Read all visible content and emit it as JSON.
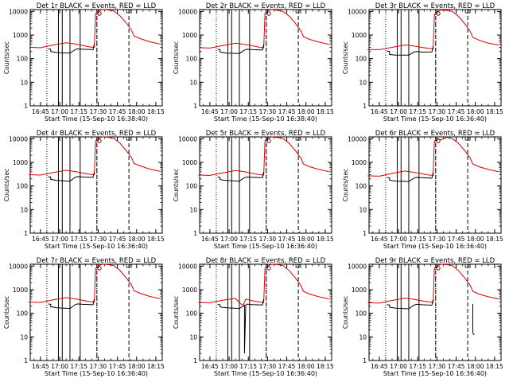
{
  "chart_data": [
    {
      "type": "line",
      "title": "Det 1r BLACK = Events, RED = LLD",
      "xlabel": "Start Time (15-Sep-10 16:38:40)",
      "ylabel": "Counts/sec",
      "x_ticks": [
        "16:45",
        "17:00",
        "17:15",
        "17:30",
        "17:45",
        "18:00",
        "18:15"
      ],
      "y_ticks": [
        "1",
        "10",
        "100",
        "1000",
        "10000"
      ],
      "ylim": [
        1,
        12000
      ],
      "log_y": true,
      "series": [
        {
          "color": "#dd0000",
          "x": [
            "16:38",
            "16:45",
            "16:55",
            "17:05",
            "17:12",
            "17:18",
            "17:24",
            "17:27",
            "17:28",
            "17:30",
            "17:33",
            "17:38",
            "17:42",
            "17:47",
            "17:52",
            "17:56",
            "17:58",
            "18:03",
            "18:10",
            "18:18"
          ],
          "y": [
            300,
            290,
            380,
            470,
            420,
            360,
            310,
            300,
            8000,
            10000,
            12000,
            11500,
            10500,
            6500,
            3200,
            1600,
            900,
            700,
            520,
            420
          ]
        },
        {
          "color": "#000000",
          "x": [
            "16:51",
            "16:53",
            "16:53",
            "16:58",
            "17:08",
            "17:12",
            "17:14",
            "17:18",
            "17:26",
            "17:27"
          ],
          "y": [
            260,
            250,
            200,
            180,
            170,
            240,
            260,
            250,
            240,
            420
          ]
        }
      ],
      "solid_markers": [
        "16:59",
        "17:02",
        "17:08",
        "17:16"
      ],
      "dotted_markers": [
        "16:50",
        "17:29"
      ],
      "dashed_markers": [
        "17:29",
        "17:54"
      ]
    },
    {
      "type": "line",
      "title": "Det 2r BLACK = Events, RED = LLD",
      "xlabel": "Start Time (15-Sep-10 16:38:40)",
      "ylabel": "Counts/sec",
      "x_ticks": [
        "16:45",
        "17:00",
        "17:15",
        "17:30",
        "17:45",
        "18:00",
        "18:15"
      ],
      "y_ticks": [
        "1",
        "10",
        "100",
        "1000",
        "10000"
      ],
      "ylim": [
        1,
        12000
      ],
      "log_y": true,
      "series": [
        {
          "color": "#dd0000",
          "x": [
            "16:38",
            "16:45",
            "16:55",
            "17:05",
            "17:12",
            "17:18",
            "17:24",
            "17:27",
            "17:28",
            "17:30",
            "17:33",
            "17:38",
            "17:42",
            "17:47",
            "17:52",
            "17:56",
            "17:58",
            "18:03",
            "18:10",
            "18:18"
          ],
          "y": [
            290,
            280,
            360,
            450,
            400,
            350,
            300,
            290,
            8500,
            10500,
            12000,
            11000,
            10000,
            6200,
            3000,
            1500,
            850,
            650,
            500,
            400
          ]
        },
        {
          "color": "#000000",
          "x": [
            "16:51",
            "16:53",
            "16:53",
            "16:58",
            "17:08",
            "17:12",
            "17:14",
            "17:18",
            "17:26",
            "17:27"
          ],
          "y": [
            250,
            240,
            190,
            170,
            165,
            230,
            250,
            240,
            230,
            400
          ]
        }
      ],
      "solid_markers": [
        "16:59",
        "17:02",
        "17:08",
        "17:16"
      ],
      "dotted_markers": [
        "16:50",
        "17:29"
      ],
      "dashed_markers": [
        "17:29",
        "17:54"
      ]
    },
    {
      "type": "line",
      "title": "Det 3r BLACK = Events, RED = LLD",
      "xlabel": "Start Time (15-Sep-10 16:36:40)",
      "ylabel": "Counts/sec",
      "x_ticks": [
        "16:45",
        "17:00",
        "17:15",
        "17:30",
        "17:45",
        "18:00",
        "18:15"
      ],
      "y_ticks": [
        "1",
        "10",
        "100",
        "1000",
        "10000"
      ],
      "ylim": [
        1,
        12000
      ],
      "log_y": true,
      "series": [
        {
          "color": "#dd0000",
          "x": [
            "16:36",
            "16:45",
            "16:55",
            "17:05",
            "17:12",
            "17:18",
            "17:24",
            "17:27",
            "17:28",
            "17:30",
            "17:33",
            "17:38",
            "17:42",
            "17:47",
            "17:52",
            "17:56",
            "17:58",
            "18:03",
            "18:10",
            "18:18"
          ],
          "y": [
            240,
            240,
            300,
            380,
            340,
            300,
            270,
            260,
            7500,
            9500,
            11500,
            11000,
            10000,
            6000,
            2800,
            1400,
            800,
            600,
            450,
            380
          ]
        },
        {
          "color": "#000000",
          "x": [
            "16:51",
            "16:53",
            "16:53",
            "16:58",
            "17:08",
            "17:12",
            "17:14",
            "17:18",
            "17:26",
            "17:27"
          ],
          "y": [
            210,
            200,
            150,
            140,
            140,
            190,
            200,
            190,
            190,
            330
          ]
        }
      ],
      "solid_markers": [
        "16:59",
        "17:02",
        "17:08",
        "17:16"
      ],
      "dotted_markers": [
        "16:50",
        "17:29"
      ],
      "dashed_markers": [
        "17:29",
        "17:54"
      ]
    },
    {
      "type": "line",
      "title": "Det 4r BLACK = Events, RED = LLD",
      "xlabel": "Start Time (15-Sep-10 16:36:40)",
      "ylabel": "Counts/sec",
      "x_ticks": [
        "16:45",
        "17:00",
        "17:15",
        "17:30",
        "17:45",
        "18:00",
        "18:15"
      ],
      "y_ticks": [
        "1",
        "10",
        "100",
        "1000",
        "10000"
      ],
      "ylim": [
        1,
        12000
      ],
      "log_y": true,
      "series": [
        {
          "color": "#dd0000",
          "x": [
            "16:36",
            "16:45",
            "16:55",
            "17:05",
            "17:12",
            "17:18",
            "17:24",
            "17:27",
            "17:28",
            "17:30",
            "17:33",
            "17:38",
            "17:42",
            "17:47",
            "17:52",
            "17:56",
            "17:58",
            "18:03",
            "18:10",
            "18:18"
          ],
          "y": [
            300,
            290,
            370,
            460,
            410,
            350,
            310,
            300,
            8000,
            10000,
            12000,
            11500,
            10500,
            6500,
            3100,
            1600,
            900,
            700,
            520,
            420
          ]
        },
        {
          "color": "#000000",
          "x": [
            "16:51",
            "16:53",
            "16:53",
            "16:58",
            "17:08",
            "17:12",
            "17:14",
            "17:18",
            "17:26",
            "17:27"
          ],
          "y": [
            250,
            240,
            190,
            170,
            160,
            230,
            250,
            240,
            230,
            400
          ]
        }
      ],
      "solid_markers": [
        "16:59",
        "17:02",
        "17:08",
        "17:16"
      ],
      "dotted_markers": [
        "16:50",
        "17:29"
      ],
      "dashed_markers": [
        "17:29",
        "17:54"
      ]
    },
    {
      "type": "line",
      "title": "Det 5r BLACK = Events, RED = LLD",
      "xlabel": "Start Time (15-Sep-10 16:36:40)",
      "ylabel": "Counts/sec",
      "x_ticks": [
        "16:45",
        "17:00",
        "17:15",
        "17:30",
        "17:45",
        "18:00",
        "18:15"
      ],
      "y_ticks": [
        "1",
        "10",
        "100",
        "1000",
        "10000"
      ],
      "ylim": [
        1,
        12000
      ],
      "log_y": true,
      "series": [
        {
          "color": "#dd0000",
          "x": [
            "16:36",
            "16:45",
            "16:55",
            "17:05",
            "17:12",
            "17:18",
            "17:24",
            "17:27",
            "17:28",
            "17:30",
            "17:33",
            "17:38",
            "17:42",
            "17:47",
            "17:52",
            "17:56",
            "17:58",
            "18:03",
            "18:10",
            "18:18"
          ],
          "y": [
            290,
            280,
            360,
            450,
            400,
            340,
            300,
            290,
            8200,
            10200,
            12000,
            11200,
            10200,
            6300,
            3000,
            1500,
            850,
            650,
            500,
            400
          ]
        },
        {
          "color": "#000000",
          "x": [
            "16:51",
            "16:53",
            "16:53",
            "16:58",
            "17:08",
            "17:12",
            "17:14",
            "17:18",
            "17:26",
            "17:27"
          ],
          "y": [
            240,
            230,
            185,
            170,
            160,
            225,
            240,
            235,
            225,
            390
          ]
        }
      ],
      "solid_markers": [
        "16:59",
        "17:02",
        "17:08",
        "17:16"
      ],
      "dotted_markers": [
        "16:50",
        "17:29"
      ],
      "dashed_markers": [
        "17:29",
        "17:54"
      ]
    },
    {
      "type": "line",
      "title": "Det 6r BLACK = Events, RED = LLD",
      "xlabel": "Start Time (15-Sep-10 16:36:40)",
      "ylabel": "Counts/sec",
      "x_ticks": [
        "16:45",
        "17:00",
        "17:15",
        "17:30",
        "17:45",
        "18:00",
        "18:15"
      ],
      "y_ticks": [
        "1",
        "10",
        "100",
        "1000",
        "10000"
      ],
      "ylim": [
        1,
        12000
      ],
      "log_y": true,
      "series": [
        {
          "color": "#dd0000",
          "x": [
            "16:36",
            "16:45",
            "16:55",
            "17:05",
            "17:12",
            "17:18",
            "17:24",
            "17:27",
            "17:28",
            "17:30",
            "17:33",
            "17:38",
            "17:42",
            "17:47",
            "17:52",
            "17:56",
            "17:58",
            "18:03",
            "18:10",
            "18:18"
          ],
          "y": [
            270,
            260,
            340,
            430,
            380,
            330,
            290,
            280,
            8000,
            10000,
            9000,
            11500,
            10000,
            6200,
            3000,
            1500,
            850,
            650,
            500,
            400
          ]
        },
        {
          "color": "#000000",
          "x": [
            "16:51",
            "16:53",
            "16:53",
            "16:58",
            "17:08",
            "17:12",
            "17:14",
            "17:18",
            "17:26",
            "17:27"
          ],
          "y": [
            230,
            220,
            175,
            160,
            155,
            215,
            230,
            225,
            215,
            370
          ]
        }
      ],
      "solid_markers": [
        "16:59",
        "17:02",
        "17:08",
        "17:16"
      ],
      "dotted_markers": [
        "16:50",
        "17:29"
      ],
      "dashed_markers": [
        "17:29",
        "17:54"
      ]
    },
    {
      "type": "line",
      "title": "Det 7r BLACK = Events, RED = LLD",
      "xlabel": "Start Time (15-Sep-10 16:36:40)",
      "ylabel": "Counts/sec",
      "x_ticks": [
        "16:45",
        "17:00",
        "17:15",
        "17:30",
        "17:45",
        "18:00",
        "18:15"
      ],
      "y_ticks": [
        "1",
        "10",
        "100",
        "1000",
        "10000"
      ],
      "ylim": [
        1,
        12000
      ],
      "log_y": true,
      "series": [
        {
          "color": "#dd0000",
          "x": [
            "16:36",
            "16:45",
            "16:55",
            "17:05",
            "17:12",
            "17:18",
            "17:24",
            "17:27",
            "17:28",
            "17:30",
            "17:33",
            "17:38",
            "17:42",
            "17:47",
            "17:52",
            "17:56",
            "17:58",
            "18:03",
            "18:10",
            "18:18"
          ],
          "y": [
            300,
            290,
            370,
            460,
            410,
            350,
            310,
            300,
            8000,
            10000,
            12000,
            11500,
            10500,
            6500,
            3100,
            1600,
            900,
            700,
            520,
            420
          ]
        },
        {
          "color": "#000000",
          "x": [
            "16:51",
            "16:53",
            "16:53",
            "16:58",
            "17:08",
            "17:12",
            "17:14",
            "17:18",
            "17:26",
            "17:27"
          ],
          "y": [
            250,
            240,
            190,
            170,
            160,
            230,
            250,
            240,
            230,
            400
          ]
        }
      ],
      "solid_markers": [
        "16:59",
        "17:02",
        "17:08",
        "17:16"
      ],
      "dotted_markers": [
        "16:50",
        "17:29"
      ],
      "dashed_markers": [
        "17:29",
        "17:54"
      ]
    },
    {
      "type": "line",
      "title": "Det 8r BLACK = Events, RED = LLD",
      "xlabel": "Start Time (15-Sep-10 16:36:40)",
      "ylabel": "Counts/sec",
      "x_ticks": [
        "16:45",
        "17:00",
        "17:15",
        "17:30",
        "17:45",
        "18:00",
        "18:15"
      ],
      "y_ticks": [
        "1",
        "10",
        "100",
        "1000",
        "10000"
      ],
      "ylim": [
        1,
        12000
      ],
      "log_y": true,
      "series": [
        {
          "color": "#dd0000",
          "x": [
            "16:36",
            "16:45",
            "16:55",
            "17:05",
            "17:09",
            "17:11",
            "17:13",
            "17:18",
            "17:24",
            "17:27",
            "17:28",
            "17:30",
            "17:33",
            "17:38",
            "17:42",
            "17:47",
            "17:52",
            "17:56",
            "17:58",
            "18:03",
            "18:10",
            "18:18"
          ],
          "y": [
            290,
            280,
            360,
            430,
            250,
            220,
            400,
            340,
            300,
            290,
            8000,
            10000,
            12000,
            11500,
            10500,
            6300,
            3000,
            1500,
            850,
            650,
            500,
            400
          ]
        },
        {
          "color": "#000000",
          "x": [
            "16:51",
            "16:53",
            "16:53",
            "16:58",
            "17:08",
            "17:12",
            "17:12",
            "17:13",
            "17:14",
            "17:18",
            "17:26",
            "17:27"
          ],
          "y": [
            240,
            230,
            185,
            170,
            160,
            220,
            2,
            220,
            245,
            235,
            225,
            390
          ]
        }
      ],
      "solid_markers": [
        "16:59",
        "17:02",
        "17:08",
        "17:16"
      ],
      "dotted_markers": [
        "16:50",
        "17:29"
      ],
      "dashed_markers": [
        "17:29",
        "17:54"
      ]
    },
    {
      "type": "line",
      "title": "Det 9r BLACK = Events, RED = LLD",
      "xlabel": "Start Time (15-Sep-10 16:36:40)",
      "ylabel": "Counts/sec",
      "x_ticks": [
        "16:45",
        "17:00",
        "17:15",
        "17:30",
        "17:45",
        "18:00",
        "18:15"
      ],
      "y_ticks": [
        "1",
        "10",
        "100",
        "1000",
        "10000"
      ],
      "ylim": [
        1,
        12000
      ],
      "log_y": true,
      "series": [
        {
          "color": "#dd0000",
          "x": [
            "16:36",
            "16:45",
            "16:55",
            "17:05",
            "17:12",
            "17:18",
            "17:24",
            "17:27",
            "17:28",
            "17:30",
            "17:33",
            "17:38",
            "17:42",
            "17:47",
            "17:52",
            "17:56",
            "17:58",
            "18:03",
            "18:10",
            "18:18"
          ],
          "y": [
            280,
            270,
            350,
            440,
            390,
            340,
            300,
            290,
            8000,
            10000,
            12000,
            11500,
            10500,
            6300,
            3000,
            1500,
            850,
            650,
            500,
            400
          ]
        },
        {
          "color": "#000000",
          "x": [
            "16:51",
            "16:53",
            "16:53",
            "16:58",
            "17:08",
            "17:12",
            "17:14",
            "17:18",
            "17:26",
            "17:27"
          ],
          "y": [
            235,
            225,
            180,
            165,
            155,
            220,
            240,
            230,
            220,
            380
          ]
        },
        {
          "color": "#000000",
          "x": [
            "17:58",
            "17:58",
            "17:59"
          ],
          "y": [
            250,
            15,
            12
          ]
        }
      ],
      "solid_markers": [
        "16:59",
        "17:02",
        "17:08",
        "17:16"
      ],
      "dotted_markers": [
        "16:50",
        "17:29"
      ],
      "dashed_markers": [
        "17:29",
        "17:54"
      ]
    }
  ]
}
